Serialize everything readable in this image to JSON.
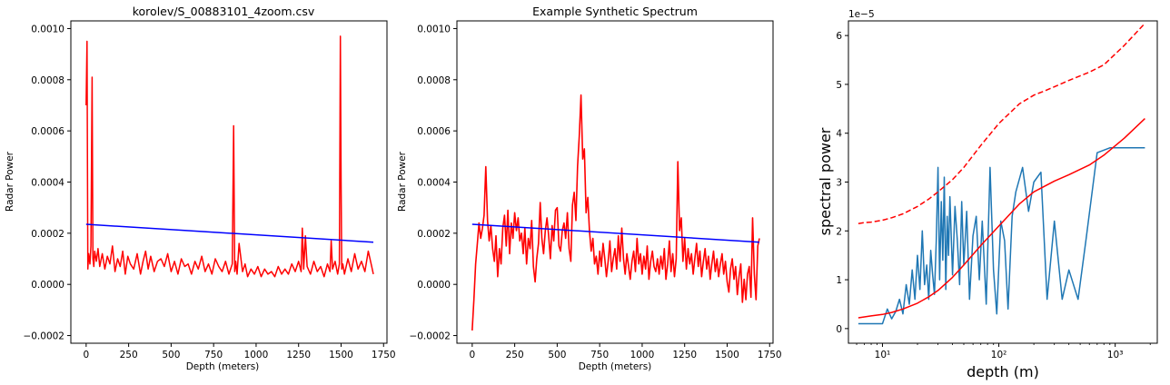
{
  "chart_data": [
    {
      "type": "line",
      "title": "korolev/S_00883101_4zoom.csv",
      "xlabel": "Depth (meters)",
      "ylabel": "Radar Power",
      "xlim": [
        -90,
        1770
      ],
      "ylim": [
        -0.00023,
        0.00103
      ],
      "xticks": [
        0,
        250,
        500,
        750,
        1000,
        1250,
        1500,
        1750
      ],
      "xtick_labels": [
        "0",
        "250",
        "500",
        "750",
        "1000",
        "1250",
        "1500",
        "1750"
      ],
      "yticks": [
        -0.0002,
        0.0,
        0.0002,
        0.0004,
        0.0006,
        0.0008,
        0.001
      ],
      "ytick_labels": [
        "−0.0002",
        "0.0000",
        "0.0002",
        "0.0004",
        "0.0006",
        "0.0008",
        "0.0010"
      ],
      "series": [
        {
          "color": "#ff0000",
          "x": [
            0,
            5,
            10,
            15,
            22,
            28,
            35,
            40,
            45,
            50,
            60,
            70,
            80,
            95,
            110,
            125,
            140,
            155,
            170,
            185,
            200,
            215,
            230,
            245,
            260,
            280,
            300,
            320,
            335,
            350,
            365,
            380,
            400,
            420,
            440,
            460,
            480,
            500,
            520,
            540,
            560,
            580,
            600,
            620,
            640,
            660,
            680,
            700,
            720,
            740,
            760,
            780,
            800,
            820,
            840,
            860,
            868,
            874,
            880,
            888,
            900,
            920,
            935,
            950,
            970,
            990,
            1010,
            1030,
            1050,
            1070,
            1090,
            1110,
            1130,
            1150,
            1170,
            1190,
            1210,
            1230,
            1250,
            1265,
            1272,
            1280,
            1290,
            1300,
            1320,
            1340,
            1360,
            1380,
            1400,
            1420,
            1435,
            1442,
            1450,
            1465,
            1480,
            1490,
            1496,
            1500,
            1504,
            1510,
            1520,
            1540,
            1560,
            1580,
            1600,
            1620,
            1640,
            1660,
            1680,
            1690
          ],
          "y": [
            0.0007,
            0.00095,
            6e-05,
            0.00012,
            8e-05,
            0.00015,
            0.00081,
            0.0001,
            7e-05,
            0.00013,
            9e-05,
            0.00014,
            7e-05,
            0.00012,
            6e-05,
            0.00011,
            8e-05,
            0.00015,
            5e-05,
            0.0001,
            7e-05,
            0.00013,
            4e-05,
            0.00011,
            8e-05,
            6e-05,
            0.00012,
            4e-05,
            9e-05,
            0.00013,
            6e-05,
            0.00011,
            5e-05,
            9e-05,
            0.0001,
            7e-05,
            0.00012,
            5e-05,
            9e-05,
            4e-05,
            0.0001,
            7e-05,
            8e-05,
            4e-05,
            9e-05,
            6e-05,
            0.00011,
            5e-05,
            8e-05,
            4e-05,
            0.0001,
            7e-05,
            5e-05,
            9e-05,
            4e-05,
            8e-05,
            0.00062,
            5e-05,
            9e-05,
            4e-05,
            0.00016,
            5e-05,
            8e-05,
            3e-05,
            6e-05,
            4e-05,
            7e-05,
            3e-05,
            6e-05,
            4e-05,
            5e-05,
            3e-05,
            7e-05,
            4e-05,
            6e-05,
            4e-05,
            8e-05,
            5e-05,
            9e-05,
            5e-05,
            0.00022,
            6e-05,
            0.00019,
            7e-05,
            4e-05,
            9e-05,
            5e-05,
            7e-05,
            3e-05,
            8e-05,
            5e-05,
            0.00017,
            6e-05,
            9e-05,
            4e-05,
            8e-05,
            0.00097,
            0.0004,
            6e-05,
            8e-05,
            4e-05,
            0.0001,
            5e-05,
            0.00012,
            6e-05,
            9e-05,
            5e-05,
            0.00013,
            7e-05,
            4e-05
          ]
        },
        {
          "color": "#0000ff",
          "x": [
            0,
            1690
          ],
          "y": [
            0.000235,
            0.000165
          ]
        }
      ]
    },
    {
      "type": "line",
      "title": "Example Synthetic Spectrum",
      "xlabel": "Depth (meters)",
      "ylabel": "Radar Power",
      "xlim": [
        -90,
        1770
      ],
      "ylim": [
        -0.00023,
        0.00103
      ],
      "xticks": [
        0,
        250,
        500,
        750,
        1000,
        1250,
        1500,
        1750
      ],
      "xtick_labels": [
        "0",
        "250",
        "500",
        "750",
        "1000",
        "1250",
        "1500",
        "1750"
      ],
      "yticks": [
        -0.0002,
        0.0,
        0.0002,
        0.0004,
        0.0006,
        0.0008,
        0.001
      ],
      "ytick_labels": [
        "−0.0002",
        "0.0000",
        "0.0002",
        "0.0004",
        "0.0006",
        "0.0008",
        "0.0010"
      ],
      "series": [
        {
          "color": "#ff0000",
          "x": [
            0,
            10,
            20,
            30,
            40,
            50,
            60,
            70,
            80,
            90,
            100,
            110,
            120,
            130,
            140,
            150,
            160,
            170,
            180,
            190,
            200,
            210,
            220,
            230,
            240,
            250,
            260,
            270,
            280,
            290,
            300,
            310,
            320,
            330,
            340,
            350,
            360,
            370,
            380,
            390,
            400,
            410,
            420,
            430,
            440,
            450,
            460,
            470,
            480,
            490,
            500,
            510,
            520,
            530,
            540,
            550,
            560,
            570,
            580,
            590,
            600,
            610,
            620,
            630,
            640,
            650,
            660,
            670,
            680,
            690,
            700,
            710,
            720,
            730,
            740,
            750,
            760,
            770,
            780,
            790,
            800,
            810,
            820,
            830,
            840,
            850,
            860,
            870,
            880,
            890,
            900,
            910,
            920,
            930,
            940,
            950,
            960,
            970,
            980,
            990,
            1000,
            1010,
            1020,
            1030,
            1040,
            1050,
            1060,
            1070,
            1080,
            1090,
            1100,
            1110,
            1120,
            1130,
            1140,
            1150,
            1160,
            1170,
            1180,
            1190,
            1200,
            1210,
            1220,
            1230,
            1240,
            1250,
            1260,
            1270,
            1280,
            1290,
            1300,
            1310,
            1320,
            1330,
            1340,
            1350,
            1360,
            1370,
            1380,
            1390,
            1400,
            1410,
            1420,
            1430,
            1440,
            1450,
            1460,
            1470,
            1480,
            1490,
            1500,
            1510,
            1520,
            1530,
            1540,
            1550,
            1560,
            1570,
            1580,
            1590,
            1600,
            1610,
            1620,
            1630,
            1640,
            1650,
            1660,
            1670,
            1680,
            1690
          ],
          "y": [
            -0.00018,
            -6e-05,
            8e-05,
            0.00016,
            0.00024,
            0.00018,
            0.00022,
            0.00027,
            0.00046,
            0.00025,
            0.00017,
            0.00023,
            0.00014,
            9e-05,
            0.00019,
            3e-05,
            0.00014,
            8e-05,
            0.00022,
            0.00027,
            0.00015,
            0.00029,
            0.00012,
            0.00024,
            0.00018,
            0.00028,
            0.00021,
            0.00026,
            0.00017,
            0.0002,
            0.00012,
            0.00022,
            8e-05,
            0.00018,
            0.00014,
            0.00025,
            7e-05,
            1e-05,
            0.0001,
            0.00016,
            0.00032,
            0.00018,
            0.00012,
            0.00021,
            0.00026,
            0.00019,
            0.0001,
            0.00023,
            0.00017,
            0.00029,
            0.0003,
            0.00015,
            0.00013,
            0.00021,
            0.00024,
            0.00018,
            0.00028,
            0.00014,
            9e-05,
            0.00031,
            0.00036,
            0.00025,
            0.00046,
            0.00058,
            0.00074,
            0.00049,
            0.00053,
            0.00028,
            0.00034,
            0.00021,
            0.00013,
            0.00018,
            8e-05,
            0.00011,
            4e-05,
            0.00013,
            7e-05,
            0.00016,
            0.0001,
            3e-05,
            9e-05,
            0.00017,
            5e-05,
            0.0001,
            0.00014,
            6e-05,
            0.00019,
            9e-05,
            0.00022,
            0.0001,
            4e-05,
            0.00012,
            7e-05,
            2e-05,
            9e-05,
            0.00013,
            5e-05,
            0.00018,
            8e-05,
            0.00012,
            4e-05,
            0.00011,
            6e-05,
            0.00015,
            2e-05,
            9e-05,
            0.00013,
            7e-05,
            5e-05,
            0.0001,
            4e-05,
            0.00011,
            6e-05,
            0.00014,
            2e-05,
            8e-05,
            0.00017,
            5e-05,
            0.00012,
            3e-05,
            0.0001,
            0.00048,
            0.00021,
            0.00026,
            9e-05,
            0.00018,
            6e-05,
            0.00014,
            8e-05,
            0.00012,
            4e-05,
            0.0001,
            0.00016,
            7e-05,
            0.00013,
            3e-05,
            9e-05,
            0.00014,
            6e-05,
            0.00011,
            2e-05,
            8e-05,
            0.00013,
            5e-05,
            0.0001,
            3e-05,
            8e-05,
            0.00012,
            4e-05,
            9e-05,
            1e-05,
            -3e-05,
            6e-05,
            0.0001,
            2e-05,
            7e-05,
            -4e-05,
            3e-05,
            8e-05,
            -7e-05,
            2e-05,
            -6e-05,
            4e-05,
            7e-05,
            -5e-05,
            0.00026,
            4e-05,
            -6e-05,
            0.00015,
            0.00018
          ],
          "linewidth": 1.6
        },
        {
          "color": "#0000ff",
          "x": [
            0,
            1690
          ],
          "y": [
            0.000235,
            0.000165
          ]
        }
      ]
    },
    {
      "type": "line",
      "title": "",
      "xlabel": "depth (m)",
      "ylabel": "spectral power",
      "xscale": "log",
      "offset_text": "1e−5",
      "xlim": [
        5.1,
        2300
      ],
      "ylim": [
        -0.3,
        6.3
      ],
      "xticks": [
        10,
        100,
        1000
      ],
      "xtick_labels": [
        "10¹",
        "10²",
        "10³"
      ],
      "yticks": [
        0,
        1,
        2,
        3,
        4,
        5,
        6
      ],
      "ytick_labels": [
        "0",
        "1",
        "2",
        "3",
        "4",
        "5",
        "6"
      ],
      "series": [
        {
          "color": "#1f77b4",
          "x": [
            6.2,
            8,
            10,
            11,
            12,
            13,
            14,
            15,
            16,
            17,
            18,
            19,
            20,
            21,
            22,
            23,
            24,
            25,
            26,
            27,
            28,
            29,
            30,
            31,
            32,
            33,
            34,
            35,
            36,
            37,
            38,
            40,
            42,
            44,
            46,
            48,
            50,
            53,
            56,
            60,
            64,
            68,
            72,
            78,
            84,
            90,
            96,
            104,
            112,
            120,
            130,
            140,
            160,
            180,
            200,
            230,
            260,
            300,
            350,
            400,
            480,
            560,
            700,
            900,
            1800
          ],
          "y": [
            0.1,
            0.1,
            0.1,
            0.4,
            0.2,
            0.35,
            0.6,
            0.3,
            0.9,
            0.5,
            1.2,
            0.6,
            1.5,
            0.8,
            2.0,
            0.9,
            1.3,
            0.6,
            1.6,
            1.1,
            0.7,
            1.8,
            3.3,
            1.0,
            2.6,
            1.4,
            3.1,
            0.8,
            2.3,
            1.5,
            2.7,
            1.1,
            2.5,
            1.8,
            0.9,
            2.6,
            1.3,
            2.4,
            0.6,
            1.9,
            2.3,
            1.0,
            2.2,
            0.5,
            3.3,
            1.2,
            0.3,
            2.2,
            1.8,
            0.4,
            2.3,
            2.8,
            3.3,
            2.4,
            3.0,
            3.2,
            0.6,
            2.2,
            0.6,
            1.2,
            0.6,
            1.8,
            3.6,
            3.7,
            3.7
          ]
        },
        {
          "color": "#ff0000",
          "x": [
            6.2,
            7,
            8,
            10,
            12,
            15,
            20,
            25,
            30,
            40,
            50,
            70,
            100,
            150,
            200,
            250,
            300,
            400,
            600,
            800,
            1200,
            1800
          ],
          "y": [
            0.22,
            0.24,
            0.26,
            0.29,
            0.33,
            0.4,
            0.52,
            0.65,
            0.78,
            1.05,
            1.3,
            1.7,
            2.1,
            2.55,
            2.8,
            2.92,
            3.02,
            3.15,
            3.35,
            3.55,
            3.9,
            4.3
          ]
        },
        {
          "color": "#ff0000",
          "dashed": true,
          "x": [
            6.2,
            7,
            8,
            10,
            12,
            15,
            20,
            25,
            30,
            40,
            50,
            70,
            100,
            150,
            200,
            250,
            300,
            400,
            600,
            800,
            1200,
            1800
          ],
          "y": [
            2.15,
            2.17,
            2.18,
            2.22,
            2.27,
            2.35,
            2.5,
            2.65,
            2.8,
            3.05,
            3.3,
            3.75,
            4.2,
            4.6,
            4.78,
            4.87,
            4.95,
            5.08,
            5.25,
            5.4,
            5.8,
            6.25
          ]
        }
      ]
    }
  ]
}
